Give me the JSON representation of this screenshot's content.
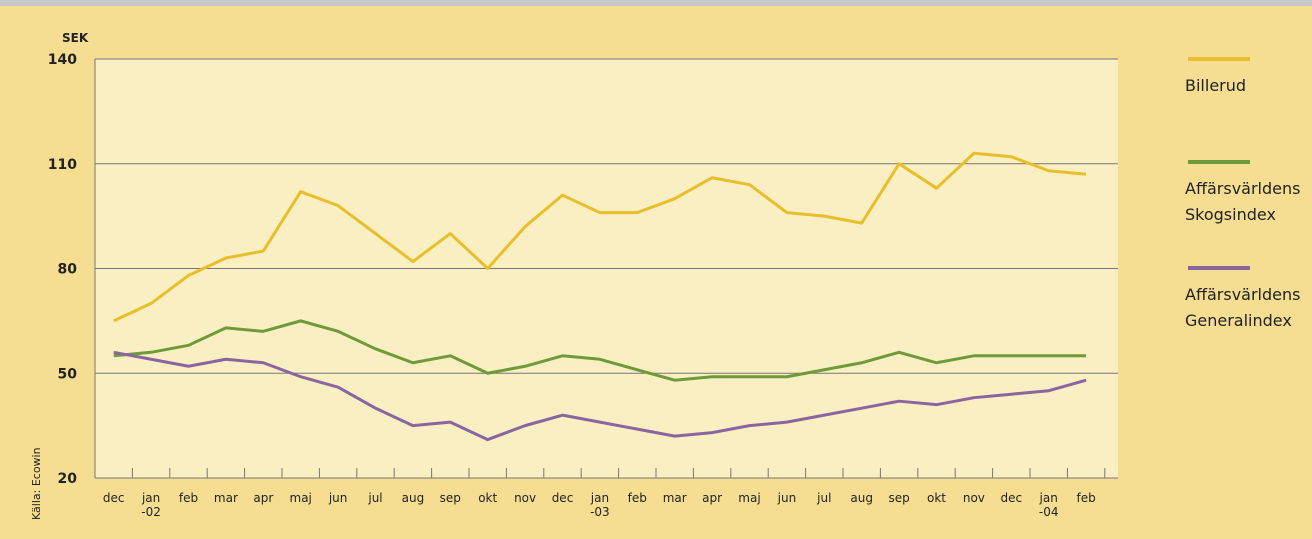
{
  "chart_data": {
    "type": "line",
    "y_label": "SEK",
    "source": "Källa: Ecowin",
    "categories": [
      "dec",
      "jan -02",
      "feb",
      "mar",
      "apr",
      "maj",
      "jun",
      "jul",
      "aug",
      "sep",
      "okt",
      "nov",
      "dec",
      "jan -03",
      "feb",
      "mar",
      "apr",
      "maj",
      "jun",
      "jul",
      "aug",
      "sep",
      "okt",
      "nov",
      "dec",
      "jan -04",
      "feb"
    ],
    "series": [
      {
        "name": "Billerud",
        "color": "#e8bf2a",
        "values": [
          65,
          70,
          78,
          83,
          85,
          102,
          98,
          90,
          82,
          90,
          80,
          92,
          101,
          96,
          96,
          100,
          106,
          104,
          96,
          95,
          93,
          110,
          103,
          113,
          112,
          108,
          107
        ]
      },
      {
        "name": "Affärsvärldens Skogsindex",
        "color": "#6e9a3a",
        "values": [
          55,
          56,
          58,
          63,
          62,
          65,
          62,
          57,
          53,
          55,
          50,
          52,
          55,
          54,
          51,
          48,
          49,
          49,
          49,
          51,
          53,
          56,
          53,
          55,
          55,
          55,
          55
        ]
      },
      {
        "name": "Affärsvärldens Generalindex",
        "color": "#8a66a0",
        "values": [
          56,
          54,
          52,
          54,
          53,
          49,
          46,
          40,
          35,
          36,
          31,
          35,
          38,
          36,
          34,
          32,
          33,
          35,
          36,
          38,
          40,
          42,
          41,
          43,
          44,
          45,
          48
        ]
      }
    ],
    "ylim": [
      20,
      140
    ],
    "yticks": [
      20,
      50,
      80,
      110,
      140
    ],
    "grid": true,
    "legend": "right"
  }
}
